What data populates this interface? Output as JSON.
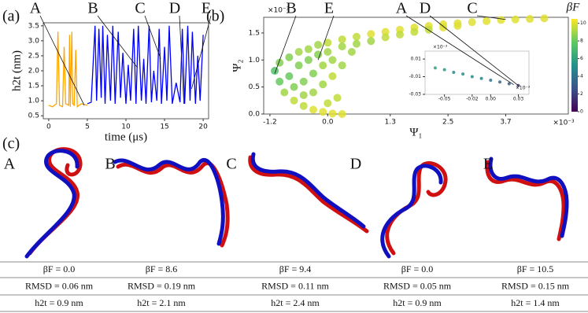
{
  "chart_data": [
    {
      "type": "line",
      "panel": "(a)",
      "xlabel": "time (μs)",
      "ylabel": "h2t (nm)",
      "xlim": [
        -0.7,
        20.7
      ],
      "ylim": [
        0.4,
        3.6
      ],
      "xticks": [
        0,
        5,
        10,
        15,
        20
      ],
      "yticks": [
        {
          "value": 0.5,
          "label": "0.5"
        },
        {
          "value": 1.0,
          "label": "1.0"
        },
        {
          "value": 1.5,
          "label": "1.5"
        },
        {
          "value": 2.0,
          "label": "2.0"
        },
        {
          "value": 2.5,
          "label": "2.5"
        },
        {
          "value": 3.0,
          "label": "3.0"
        },
        {
          "value": 3.5,
          "label": "3.5"
        }
      ],
      "series": [
        {
          "color": "#ffa500",
          "x": [
            0,
            0.5,
            1.0,
            1.2,
            1.4,
            1.8,
            2.0,
            2.2,
            2.6,
            2.7,
            2.8,
            3.0,
            3.1,
            3.3,
            3.5,
            3.7,
            4.2,
            5.0
          ],
          "values": [
            0.85,
            0.8,
            0.9,
            3.3,
            0.85,
            0.8,
            2.8,
            0.9,
            0.85,
            3.2,
            0.8,
            3.3,
            0.9,
            0.85,
            2.7,
            0.8,
            0.9,
            0.85
          ]
        },
        {
          "color": "#0000ff",
          "x": [
            5,
            5.5,
            6,
            6.2,
            6.5,
            6.8,
            7,
            7.3,
            7.6,
            8,
            8.3,
            8.6,
            9,
            9.3,
            9.6,
            10,
            10.3,
            10.6,
            11,
            11.3,
            11.6,
            12,
            12.3,
            12.6,
            13,
            13.3,
            13.6,
            14,
            14.3,
            14.6,
            15,
            15.3,
            15.6,
            16,
            16.5,
            17,
            17.3,
            17.6,
            18,
            18.3,
            18.6,
            19,
            19.3,
            19.6,
            20
          ],
          "values": [
            0.9,
            0.95,
            3.5,
            1.0,
            3.4,
            1.1,
            3.5,
            0.9,
            3.2,
            1.0,
            3.5,
            0.9,
            3.3,
            1.1,
            2.6,
            0.9,
            2.2,
            1.0,
            3.4,
            0.9,
            3.5,
            1.0,
            2.4,
            0.9,
            3.5,
            0.95,
            2.0,
            1.0,
            3.4,
            0.9,
            2.8,
            1.0,
            3.5,
            0.9,
            1.6,
            0.95,
            3.4,
            0.9,
            3.5,
            1.0,
            3.3,
            0.9,
            2.5,
            1.0,
            3.2
          ]
        }
      ],
      "annotations": [
        {
          "text": "A",
          "x": 4.6,
          "y": 0.85
        },
        {
          "text": "B",
          "x": 11.5,
          "y": 2.1
        },
        {
          "text": "C",
          "x": 14.5,
          "y": 2.4
        },
        {
          "text": "D",
          "x": 17.5,
          "y": 0.9
        },
        {
          "text": "E",
          "x": 18.5,
          "y": 1.4
        }
      ]
    },
    {
      "type": "scatter",
      "panel": "(b)",
      "xlabel": "Ψ₁",
      "ylabel": "Ψ₂",
      "x_multiplier": "×10⁻³",
      "y_multiplier": "×10⁻³",
      "xlim": [
        -1.33,
        5.0
      ],
      "ylim": [
        0,
        1.79
      ],
      "xticks": [
        {
          "value": -1.2,
          "label": "-1.2"
        },
        {
          "value": 0,
          "label": "0.0"
        },
        1.3,
        2.5,
        3.7
      ],
      "yticks": [
        {
          "value": 0,
          "label": "0.0"
        },
        0.5,
        {
          "value": 1,
          "label": "1.0"
        },
        1.5
      ],
      "x": [
        -1.1,
        -1.0,
        -0.8,
        -0.6,
        -0.4,
        -0.2,
        0,
        0.3,
        0.6,
        0.9,
        1.2,
        1.5,
        1.8,
        2.1,
        2.4,
        2.7,
        3.0,
        3.3,
        3.6,
        3.9,
        4.2,
        4.5,
        -1.0,
        -0.9,
        -0.7,
        -0.5,
        -0.3,
        -0.1,
        0.1,
        0.3,
        -0.8,
        -0.6,
        -0.4,
        -0.2,
        0,
        0.3,
        -0.7,
        -0.5,
        -0.3,
        -0.1,
        0.1,
        -0.5,
        -0.3,
        -0.1,
        0.1,
        0.2,
        0,
        0.6,
        0.9,
        1.2,
        1.5,
        1.8,
        2.1,
        2.4,
        2.7,
        0.3,
        0.5
      ],
      "values": [
        0.8,
        0.95,
        1.05,
        1.15,
        1.2,
        1.28,
        1.32,
        1.38,
        1.43,
        1.48,
        1.52,
        1.56,
        1.6,
        1.63,
        1.66,
        1.68,
        1.7,
        1.72,
        1.74,
        1.75,
        1.76,
        1.77,
        0.6,
        0.4,
        0.25,
        0.15,
        0.08,
        0.04,
        0.01,
        0.0,
        0.7,
        0.9,
        1.0,
        1.1,
        1.15,
        1.25,
        0.5,
        0.6,
        0.75,
        0.9,
        1.0,
        0.35,
        0.4,
        0.55,
        0.7,
        0.3,
        0.2,
        1.3,
        1.35,
        1.42,
        1.47,
        1.52,
        1.56,
        1.6,
        1.63,
        0.9,
        1.15
      ],
      "c": [
        7.5,
        8.5,
        8.5,
        9,
        9,
        9,
        9.5,
        9.5,
        9.5,
        10,
        10,
        10,
        10,
        10,
        10,
        10,
        10,
        10,
        10,
        10,
        10,
        10,
        8,
        9,
        9.5,
        9.5,
        10,
        10,
        10,
        10,
        8,
        8.5,
        8.5,
        8.5,
        9,
        9,
        8.5,
        8.5,
        8.5,
        9,
        9,
        9,
        9,
        9,
        9.5,
        9.5,
        9.5,
        9,
        9,
        9.5,
        9.5,
        9.5,
        9.5,
        10,
        10,
        9,
        9
      ],
      "colorbar": {
        "label": "βF",
        "lim": [
          0,
          10.5
        ],
        "ticks": [
          0,
          2,
          4,
          6,
          8,
          10
        ]
      },
      "annotations": [
        {
          "text": "B",
          "x": -1.1,
          "y": 0.75
        },
        {
          "text": "E",
          "x": -0.2,
          "y": 1.0
        },
        {
          "text": "C",
          "x": 3.7,
          "y": 1.75
        }
      ]
    },
    {
      "type": "scatter",
      "x_multiplier": "×10⁻³",
      "y_multiplier": "×10⁻³",
      "xlim": [
        -0.071,
        0.0415
      ],
      "ylim": [
        -0.03,
        0.019
      ],
      "xticks": [
        -0.05,
        -0.02,
        {
          "value": 0,
          "label": "0.00"
        },
        0.03
      ],
      "yticks": [
        0.01,
        -0.01,
        -0.03
      ],
      "x": [
        -0.06,
        -0.05,
        -0.04,
        -0.03,
        -0.02,
        -0.01,
        0,
        0.01,
        0.02,
        0.03
      ],
      "values": [
        0.0,
        -0.002,
        -0.005,
        -0.007,
        -0.01,
        -0.012,
        -0.014,
        -0.016,
        -0.018,
        -0.02
      ],
      "c": [
        6,
        5.5,
        5,
        5,
        5,
        4.5,
        4,
        3.5,
        3,
        2
      ],
      "annotations": [
        {
          "text": "A",
          "x": 0.025,
          "y": -0.019
        },
        {
          "text": "D",
          "x": 0.03,
          "y": -0.02
        }
      ]
    }
  ],
  "panel_c": {
    "label": "(c)",
    "columns": [
      {
        "label": "A",
        "beta_f": "βF = 0.0",
        "rmsd": "RMSD = 0.06 nm",
        "h2t": "h2t = 0.9 nm"
      },
      {
        "label": "B",
        "beta_f": "βF = 8.6",
        "rmsd": "RMSD = 0.19 nm",
        "h2t": "h2t = 2.1 nm"
      },
      {
        "label": "C",
        "beta_f": "βF = 9.4",
        "rmsd": "RMSD = 0.11 nm",
        "h2t": "h2t = 2.4 nm"
      },
      {
        "label": "D",
        "beta_f": "βF = 0.0",
        "rmsd": "RMSD = 0.05 nm",
        "h2t": "h2t = 0.9 nm"
      },
      {
        "label": "E",
        "beta_f": "βF = 10.5",
        "rmsd": "RMSD = 0.15 nm",
        "h2t": "h2t = 1.4 nm"
      }
    ]
  }
}
